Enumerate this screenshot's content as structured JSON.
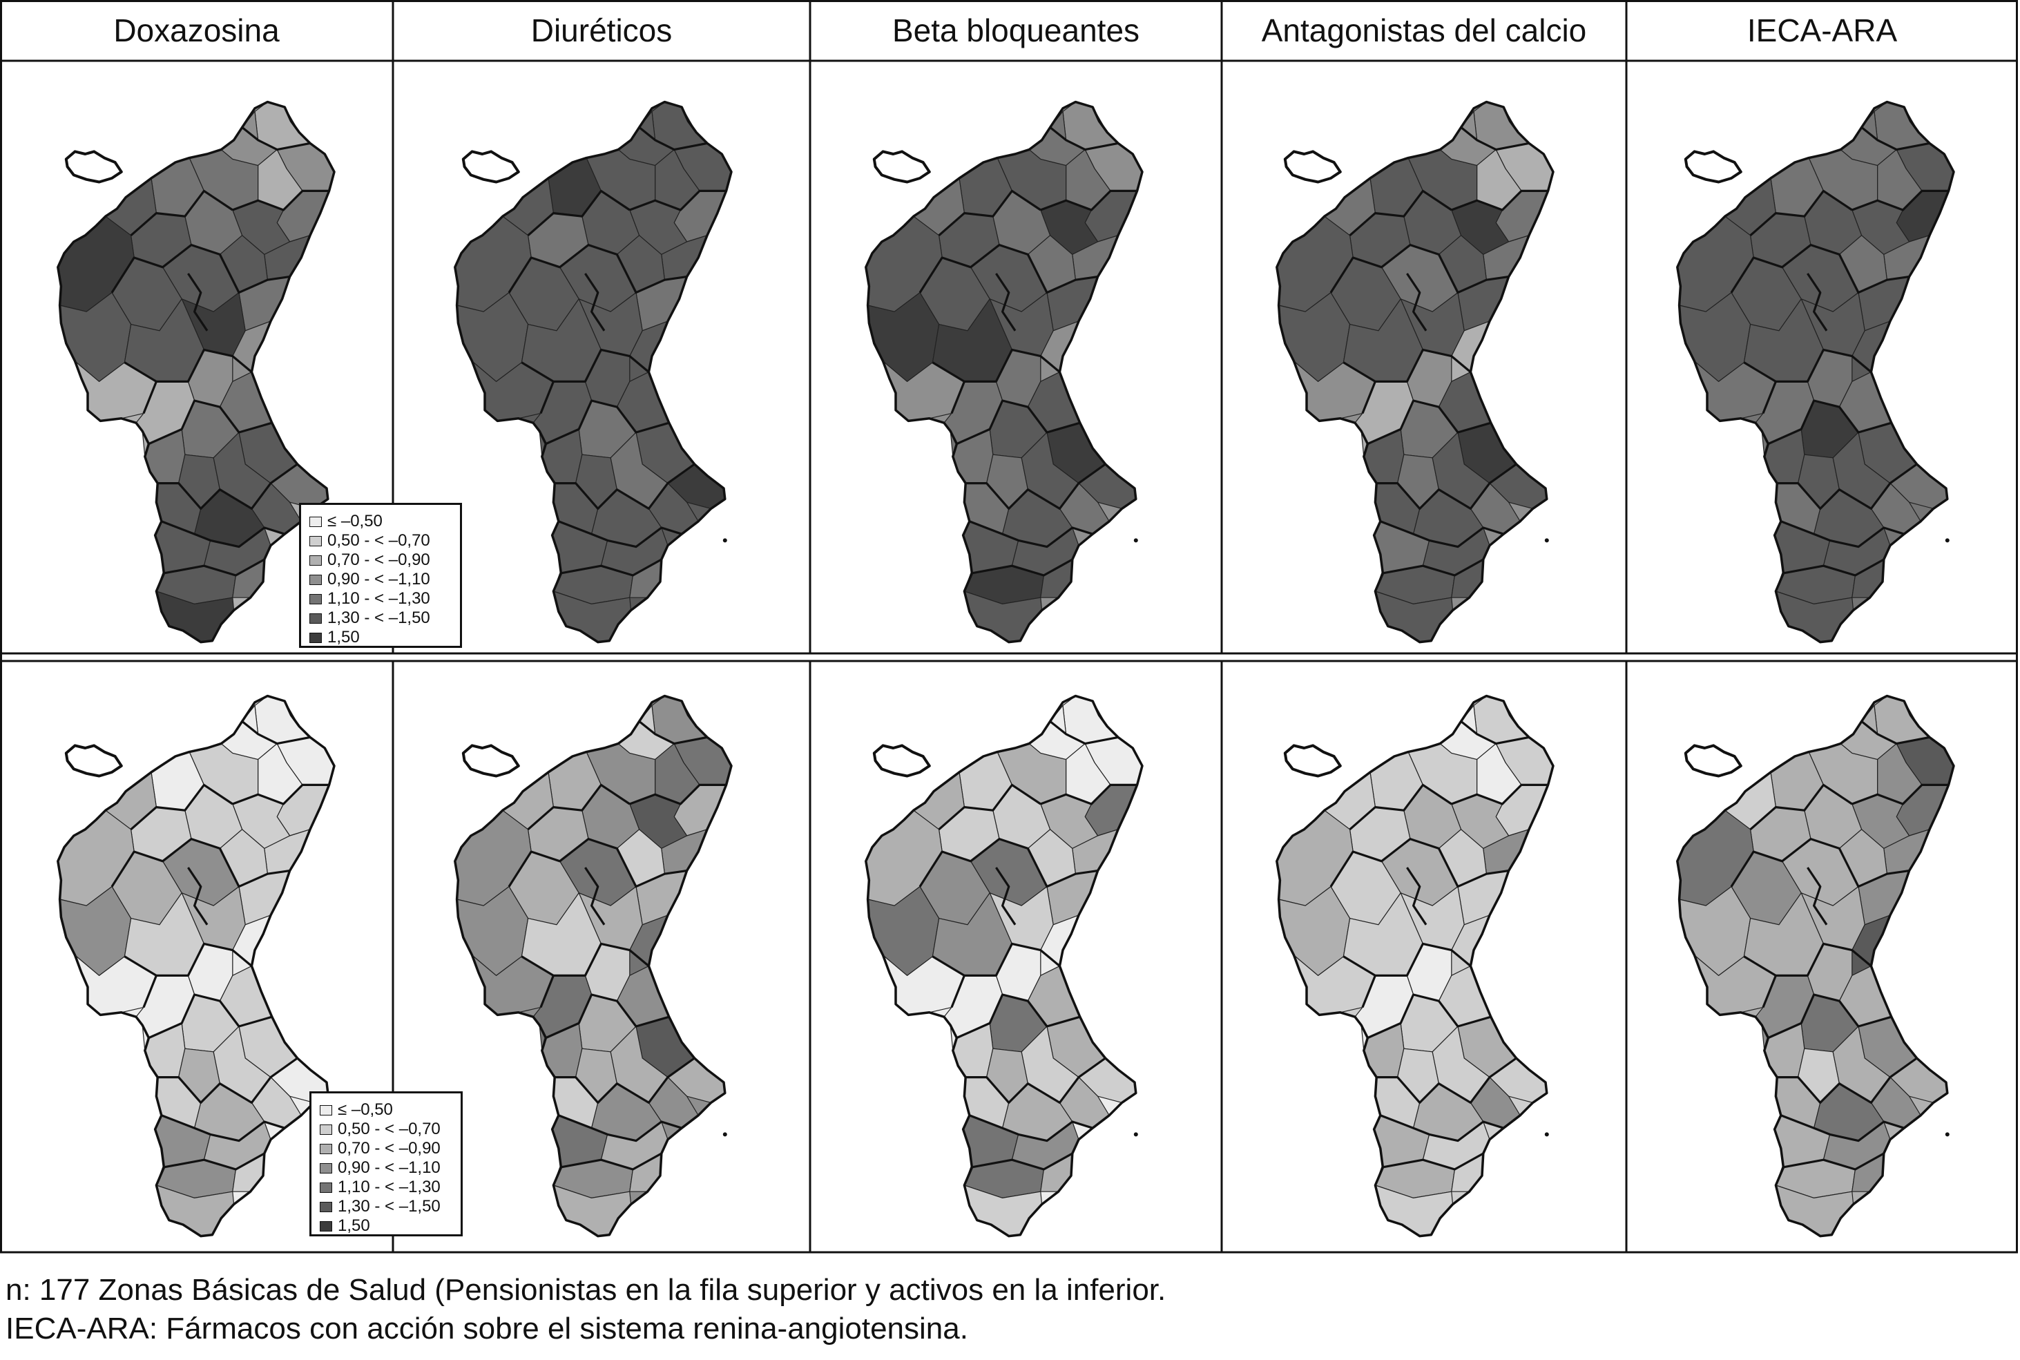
{
  "columns": [
    "Doxazosina",
    "Diuréticos",
    "Beta bloqueantes",
    "Antagonistas del calcio",
    "IECA-ARA"
  ],
  "legend": {
    "items": [
      {
        "label": "≤ –0,50",
        "color": "#ededed"
      },
      {
        "label": "0,50 - < –0,70",
        "color": "#cfcfcf"
      },
      {
        "label": "0,70 - < –0,90",
        "color": "#b0b0b0"
      },
      {
        "label": "0,90 - < –1,10",
        "color": "#8f8f8f"
      },
      {
        "label": "1,10 - < –1,30",
        "color": "#747474"
      },
      {
        "label": "1,30 - < –1,50",
        "color": "#5a5a5a"
      },
      {
        "label": "1,50",
        "color": "#3c3c3c"
      }
    ]
  },
  "rows": [
    {
      "maps": [
        {
          "region_levels": [
            2,
            3,
            3,
            2,
            4,
            4,
            5,
            4,
            4,
            5,
            5,
            5,
            5,
            6,
            5,
            5,
            5,
            4,
            6,
            5
          ]
        },
        {
          "region_levels": [
            5,
            5,
            5,
            5,
            5,
            4,
            5,
            6,
            5,
            5,
            4,
            5,
            5,
            5,
            5,
            5,
            5,
            4,
            5,
            5
          ]
        },
        {
          "region_levels": [
            3,
            3,
            4,
            4,
            5,
            5,
            6,
            5,
            4,
            4,
            5,
            4,
            4,
            5,
            5,
            5,
            6,
            5,
            5,
            6
          ]
        },
        {
          "region_levels": [
            3,
            2,
            3,
            2,
            5,
            4,
            6,
            5,
            5,
            4,
            5,
            4,
            5,
            5,
            4,
            5,
            5,
            5,
            5,
            5
          ]
        },
        {
          "region_levels": [
            4,
            5,
            4,
            4,
            4,
            6,
            5,
            4,
            5,
            5,
            5,
            4,
            4,
            5,
            5,
            5,
            5,
            5,
            5,
            5
          ]
        }
      ]
    },
    {
      "maps": [
        {
          "region_levels": [
            0,
            0,
            0,
            0,
            1,
            1,
            1,
            0,
            1,
            2,
            1,
            1,
            1,
            2,
            3,
            2,
            3,
            1,
            2,
            1
          ]
        },
        {
          "region_levels": [
            3,
            4,
            1,
            4,
            3,
            2,
            5,
            2,
            3,
            2,
            2,
            3,
            1,
            3,
            4,
            2,
            3,
            2,
            2,
            1
          ]
        },
        {
          "region_levels": [
            0,
            0,
            0,
            0,
            2,
            4,
            2,
            1,
            1,
            2,
            1,
            2,
            1,
            2,
            4,
            3,
            4,
            2,
            1,
            3
          ]
        },
        {
          "region_levels": [
            1,
            1,
            0,
            0,
            1,
            1,
            2,
            1,
            2,
            1,
            1,
            3,
            1,
            2,
            2,
            1,
            2,
            1,
            1,
            1
          ]
        },
        {
          "region_levels": [
            2,
            5,
            2,
            3,
            2,
            4,
            3,
            2,
            2,
            1,
            2,
            3,
            2,
            4,
            2,
            3,
            2,
            3,
            2,
            2
          ]
        }
      ]
    }
  ],
  "notes": [
    "n: 177 Zonas Básicas de Salud (Pensionistas en la fila superior y activos en la inferior.",
    "IECA-ARA: Fármacos con acción sobre el sistema renina-angiotensina."
  ]
}
